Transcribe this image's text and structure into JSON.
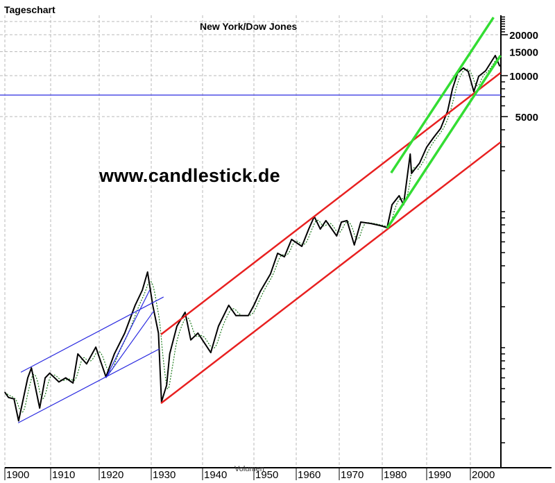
{
  "header": {
    "chart_type_label": "Tageschart",
    "watermark": "www.candlestick.de"
  },
  "chart_data": {
    "type": "line",
    "title": "New York/Dow Jones",
    "xlabel": "Volumen",
    "ylabel": "",
    "y_scale": "log",
    "grid": true,
    "x_ticks": [
      1900,
      1910,
      1920,
      1930,
      1940,
      1950,
      1960,
      1970,
      1980,
      1990,
      2000
    ],
    "y_ticks": [
      5000,
      10000,
      15000,
      20000
    ],
    "colors": {
      "price": "#000000",
      "moving_average": "#1a7a1a",
      "blue_lines": "#2a2ae0",
      "red_lines": "#e82020",
      "green_lines": "#33dd33",
      "grid": "#b8b8b8"
    },
    "series": [
      {
        "x": [
          1900.0,
          1900.8,
          1902.0,
          1903.0,
          1905.0,
          1905.8,
          1907.6,
          1908.8,
          1909.8,
          1911.7,
          1913.1,
          1914.6,
          1915.6,
          1917.4,
          1919.3,
          1921.3,
          1922.9,
          1924.9,
          1926.9,
          1928.3,
          1929.3,
          1930.3,
          1931.4,
          1932.0,
          1933.0,
          1933.6,
          1935.0,
          1936.6,
          1937.7,
          1939.1,
          1941.6,
          1943.1,
          1945.1,
          1946.5,
          1948.9,
          1950.0,
          1951.5,
          1953.9,
          1955.6,
          1957.2,
          1958.9,
          1961.3,
          1962.9,
          1964.2,
          1965.6,
          1966.9,
          1969.4,
          1970.5,
          1971.8,
          1973.5,
          1975.0,
          1977.4,
          1979.5,
          1981.1,
          1982.2,
          1983.8,
          1984.8,
          1986.3,
          1986.6,
          1988.4,
          1990.0,
          1991.6,
          1993.2,
          1994.8,
          1995.9,
          1997.1,
          1998.4,
          1999.5,
          2000.8,
          2001.9,
          2003.5,
          2005.7,
          2006.7
        ],
        "values": [
          47,
          43,
          42,
          29,
          60,
          71,
          36,
          60,
          65,
          56,
          60,
          55,
          90,
          76,
          101,
          61,
          90,
          128,
          205,
          265,
          360,
          205,
          128,
          40,
          53,
          90,
          144,
          182,
          114,
          128,
          92,
          144,
          205,
          172,
          172,
          205,
          259,
          348,
          494,
          466,
          625,
          556,
          745,
          920,
          745,
          859,
          663,
          838,
          859,
          569,
          838,
          818,
          791,
          763,
          1125,
          1310,
          1125,
          2650,
          1910,
          2275,
          2980,
          3515,
          4095,
          5495,
          8000,
          10470,
          11380,
          10730,
          7630,
          9880,
          10860,
          14060,
          11780
        ]
      }
    ],
    "trend_lines": [
      {
        "color": "blue",
        "from": [
          1903.5,
          66
        ],
        "to": [
          1932.4,
          236
        ]
      },
      {
        "color": "blue",
        "from": [
          1902.9,
          28
        ],
        "to": [
          1931.6,
          98
        ]
      },
      {
        "color": "blue",
        "from": [
          1921.3,
          60
        ],
        "to": [
          1929.7,
          265
        ]
      },
      {
        "color": "blue",
        "from": [
          1921.3,
          60
        ],
        "to": [
          1930.5,
          186
        ]
      },
      {
        "color": "red",
        "from": [
          1931.9,
          125
        ],
        "to": [
          2006.9,
          10480
        ]
      },
      {
        "color": "red",
        "from": [
          1931.9,
          39
        ],
        "to": [
          2006.9,
          3240
        ]
      },
      {
        "color": "green",
        "from": [
          1982.0,
          1930
        ],
        "to": [
          2005.3,
          26800
        ]
      },
      {
        "color": "green",
        "from": [
          1981.1,
          755
        ],
        "to": [
          2006.9,
          14060
        ]
      }
    ],
    "horizontal_line": {
      "color": "blue",
      "value": 7200
    }
  }
}
